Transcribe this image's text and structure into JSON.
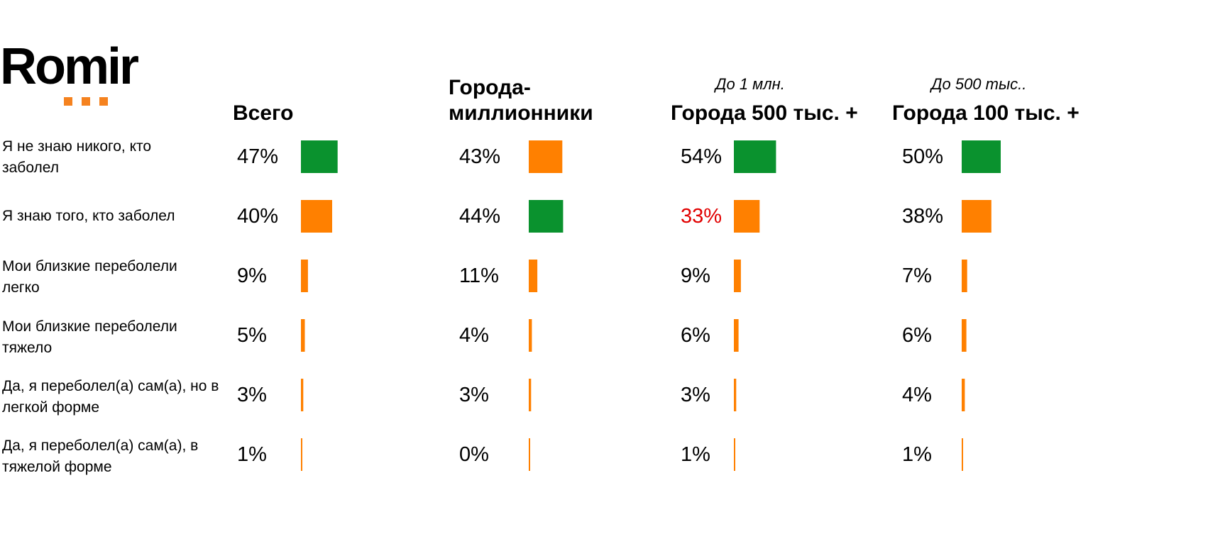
{
  "logo": {
    "text": "Romir",
    "dot_color": "#F5821F"
  },
  "colors": {
    "green": "#0A922E",
    "orange": "#FF8000",
    "highlight_text": "#E10000"
  },
  "columns": [
    {
      "subtitle": "",
      "header": "Всего"
    },
    {
      "subtitle": "",
      "header": "Города-\nмиллионники"
    },
    {
      "subtitle": "До 1 млн.",
      "header": "Города 500 тыс. +"
    },
    {
      "subtitle": "До 500 тыс..",
      "header": "Города 100 тыс. +"
    }
  ],
  "rows": [
    "Я не знаю никого, кто заболел",
    "Я знаю того, кто заболел",
    "Мои близкие переболели легко",
    "Мои близкие переболели тяжело",
    "Да, я переболел(а) сам(а), но в легкой форме",
    "Да, я переболел(а) сам(а),  в тяжелой форме"
  ],
  "chart_data": {
    "type": "bar",
    "categories": [
      "Я не знаю никого, кто заболел",
      "Я знаю того, кто заболел",
      "Мои близкие переболели легко",
      "Мои близкие переболели тяжело",
      "Да, я переболел(а) сам(а), но в легкой форме",
      "Да, я переболел(а) сам(а),  в тяжелой форме"
    ],
    "series": [
      {
        "name": "Всего",
        "values": [
          47,
          40,
          9,
          5,
          3,
          1
        ],
        "labels": [
          "47%",
          "40%",
          "9%",
          "5%",
          "3%",
          "1%"
        ],
        "bar_colors": [
          "green",
          "orange",
          "orange",
          "orange",
          "orange",
          "orange"
        ],
        "label_colors": [
          "default",
          "default",
          "default",
          "default",
          "default",
          "default"
        ]
      },
      {
        "name": "Города-миллионники",
        "values": [
          43,
          44,
          11,
          4,
          3,
          0
        ],
        "labels": [
          "43%",
          "44%",
          "11%",
          "4%",
          "3%",
          "0%"
        ],
        "bar_colors": [
          "orange",
          "green",
          "orange",
          "orange",
          "orange",
          "orange"
        ],
        "label_colors": [
          "default",
          "default",
          "default",
          "default",
          "default",
          "default"
        ]
      },
      {
        "name": "Города 500 тыс. +",
        "values": [
          54,
          33,
          9,
          6,
          3,
          1
        ],
        "labels": [
          "54%",
          "33%",
          "9%",
          "6%",
          "3%",
          "1%"
        ],
        "bar_colors": [
          "green",
          "orange",
          "orange",
          "orange",
          "orange",
          "orange"
        ],
        "label_colors": [
          "default",
          "highlight",
          "default",
          "default",
          "default",
          "default"
        ]
      },
      {
        "name": "Города 100 тыс. +",
        "values": [
          50,
          38,
          7,
          6,
          4,
          1
        ],
        "labels": [
          "50%",
          "38%",
          "7%",
          "6%",
          "4%",
          "1%"
        ],
        "bar_colors": [
          "green",
          "orange",
          "orange",
          "orange",
          "orange",
          "orange"
        ],
        "label_colors": [
          "default",
          "default",
          "default",
          "default",
          "default",
          "default"
        ]
      }
    ],
    "xlim": [
      0,
      100
    ],
    "grid": false,
    "legend": "none"
  }
}
